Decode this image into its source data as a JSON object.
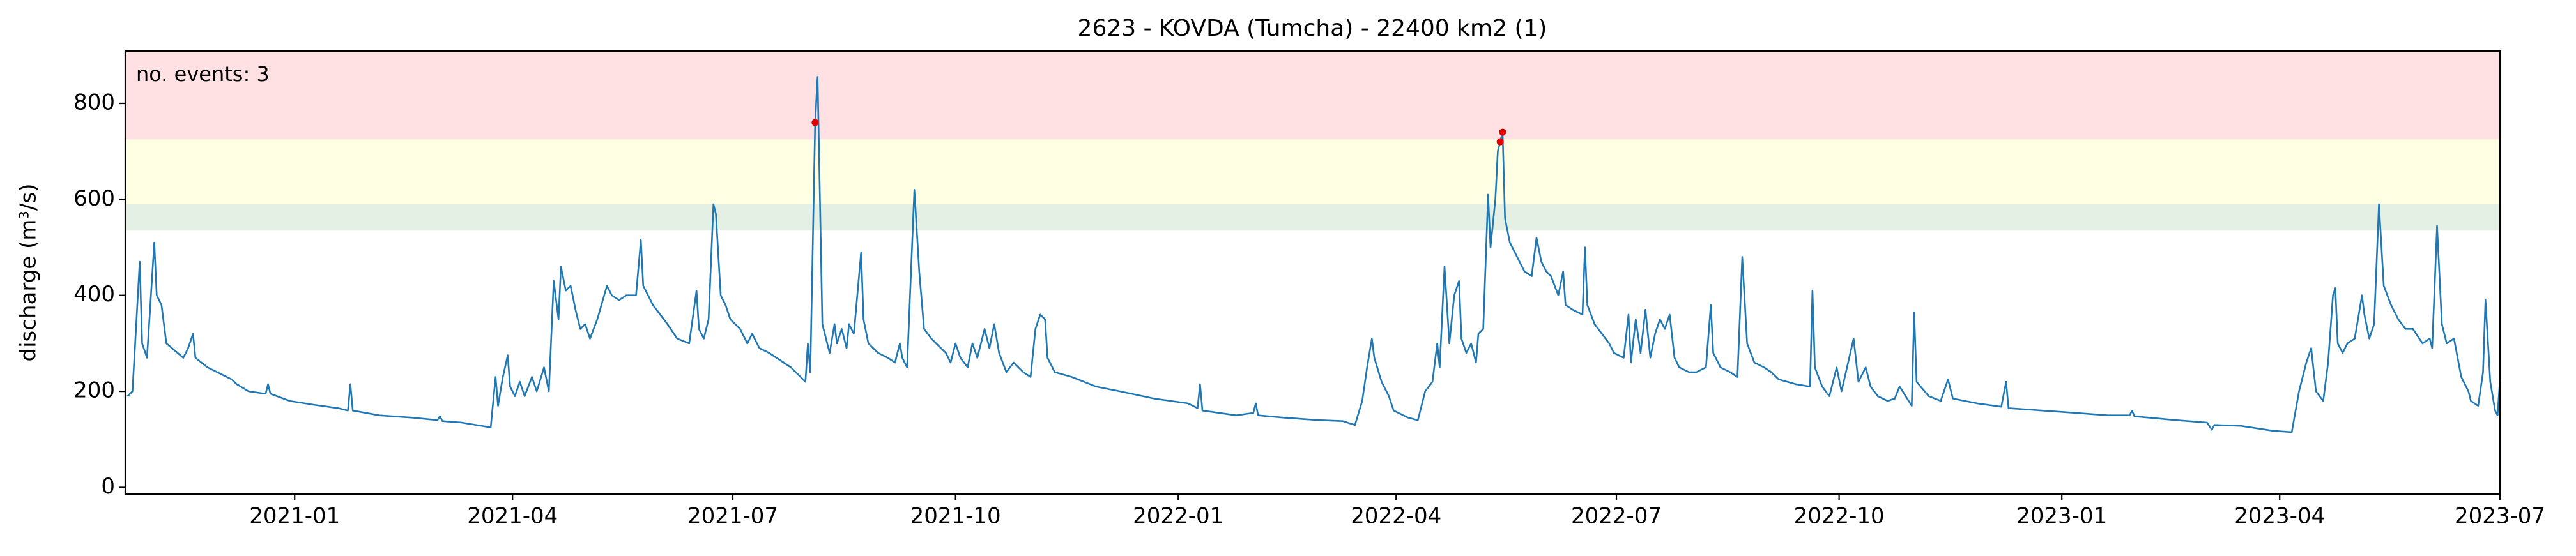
{
  "chart_data": {
    "type": "line",
    "title": "2623 - KOVDA (Tumcha) - 22400 km2 (1)",
    "y_label": "discharge (m³/s)",
    "annotation": "no. events: 3",
    "annotation_color": "#e00000",
    "color": "#1f77b4",
    "xlim": [
      "2020-10-23",
      "2023-07-01"
    ],
    "ylim": [
      -14,
      909
    ],
    "xticks": [
      "2021-01",
      "2021-04",
      "2021-07",
      "2021-10",
      "2022-01",
      "2022-04",
      "2022-07",
      "2022-10",
      "2023-01",
      "2023-04",
      "2023-07"
    ],
    "yticks": [
      0,
      200,
      400,
      600,
      800
    ],
    "bands": [
      {
        "lower": 535,
        "color": "#e3f0e3"
      },
      {
        "lower": 590,
        "color": "#ffffe3"
      },
      {
        "lower": 725,
        "color": "#ffe0e3"
      }
    ],
    "x": [
      "2020-10-24",
      "2020-10-26",
      "2020-10-29",
      "2020-10-30",
      "2020-11-01",
      "2020-11-04",
      "2020-11-05",
      "2020-11-07",
      "2020-11-09",
      "2020-11-16",
      "2020-11-18",
      "2020-11-20",
      "2020-11-21",
      "2020-11-26",
      "2020-12-06",
      "2020-12-08",
      "2020-12-13",
      "2020-12-20",
      "2020-12-21",
      "2020-12-22",
      "2020-12-30",
      "2021-01-09",
      "2021-01-19",
      "2021-01-23",
      "2021-01-24",
      "2021-01-25",
      "2021-02-05",
      "2021-02-19",
      "2021-03-01",
      "2021-03-02",
      "2021-03-03",
      "2021-03-11",
      "2021-03-23",
      "2021-03-25",
      "2021-03-26",
      "2021-03-28",
      "2021-03-30",
      "2021-03-31",
      "2021-04-02",
      "2021-04-04",
      "2021-04-06",
      "2021-04-09",
      "2021-04-11",
      "2021-04-14",
      "2021-04-16",
      "2021-04-18",
      "2021-04-20",
      "2021-04-21",
      "2021-04-23",
      "2021-04-25",
      "2021-04-27",
      "2021-04-29",
      "2021-05-01",
      "2021-05-03",
      "2021-05-06",
      "2021-05-10",
      "2021-05-12",
      "2021-05-15",
      "2021-05-18",
      "2021-05-22",
      "2021-05-24",
      "2021-05-25",
      "2021-05-29",
      "2021-06-01",
      "2021-06-04",
      "2021-06-08",
      "2021-06-13",
      "2021-06-16",
      "2021-06-17",
      "2021-06-19",
      "2021-06-21",
      "2021-06-23",
      "2021-06-24",
      "2021-06-26",
      "2021-06-28",
      "2021-06-30",
      "2021-07-04",
      "2021-07-07",
      "2021-07-09",
      "2021-07-12",
      "2021-07-16",
      "2021-07-19",
      "2021-07-22",
      "2021-07-25",
      "2021-07-29",
      "2021-07-31",
      "2021-08-01",
      "2021-08-02",
      "2021-08-04",
      "2021-08-05",
      "2021-08-06",
      "2021-08-07",
      "2021-08-08",
      "2021-08-10",
      "2021-08-12",
      "2021-08-13",
      "2021-08-15",
      "2021-08-17",
      "2021-08-18",
      "2021-08-20",
      "2021-08-23",
      "2021-08-24",
      "2021-08-26",
      "2021-08-30",
      "2021-09-03",
      "2021-09-06",
      "2021-09-08",
      "2021-09-09",
      "2021-09-11",
      "2021-09-14",
      "2021-09-16",
      "2021-09-18",
      "2021-09-21",
      "2021-09-25",
      "2021-09-27",
      "2021-09-29",
      "2021-10-01",
      "2021-10-03",
      "2021-10-06",
      "2021-10-08",
      "2021-10-10",
      "2021-10-13",
      "2021-10-15",
      "2021-10-17",
      "2021-10-19",
      "2021-10-22",
      "2021-10-25",
      "2021-10-29",
      "2021-11-01",
      "2021-11-03",
      "2021-11-05",
      "2021-11-07",
      "2021-11-08",
      "2021-11-11",
      "2021-11-18",
      "2021-11-28",
      "2021-12-08",
      "2021-12-22",
      "2022-01-05",
      "2022-01-09",
      "2022-01-10",
      "2022-01-11",
      "2022-01-18",
      "2022-01-25",
      "2022-02-01",
      "2022-02-02",
      "2022-02-03",
      "2022-02-14",
      "2022-02-28",
      "2022-03-10",
      "2022-03-15",
      "2022-03-18",
      "2022-03-20",
      "2022-03-22",
      "2022-03-23",
      "2022-03-26",
      "2022-03-29",
      "2022-03-31",
      "2022-04-06",
      "2022-04-10",
      "2022-04-13",
      "2022-04-16",
      "2022-04-18",
      "2022-04-19",
      "2022-04-21",
      "2022-04-22",
      "2022-04-23",
      "2022-04-25",
      "2022-04-27",
      "2022-04-28",
      "2022-04-30",
      "2022-05-02",
      "2022-05-04",
      "2022-05-05",
      "2022-05-07",
      "2022-05-09",
      "2022-05-10",
      "2022-05-12",
      "2022-05-13",
      "2022-05-14",
      "2022-05-15",
      "2022-05-16",
      "2022-05-18",
      "2022-05-21",
      "2022-05-24",
      "2022-05-27",
      "2022-05-29",
      "2022-05-31",
      "2022-06-02",
      "2022-06-04",
      "2022-06-07",
      "2022-06-09",
      "2022-06-10",
      "2022-06-13",
      "2022-06-17",
      "2022-06-18",
      "2022-06-19",
      "2022-06-22",
      "2022-06-25",
      "2022-06-28",
      "2022-06-30",
      "2022-07-04",
      "2022-07-06",
      "2022-07-07",
      "2022-07-09",
      "2022-07-11",
      "2022-07-13",
      "2022-07-15",
      "2022-07-17",
      "2022-07-19",
      "2022-07-21",
      "2022-07-23",
      "2022-07-25",
      "2022-07-27",
      "2022-07-31",
      "2022-08-03",
      "2022-08-07",
      "2022-08-09",
      "2022-08-10",
      "2022-08-13",
      "2022-08-17",
      "2022-08-20",
      "2022-08-22",
      "2022-08-24",
      "2022-08-27",
      "2022-08-31",
      "2022-09-03",
      "2022-09-06",
      "2022-09-13",
      "2022-09-19",
      "2022-09-20",
      "2022-09-21",
      "2022-09-24",
      "2022-09-27",
      "2022-09-30",
      "2022-10-02",
      "2022-10-07",
      "2022-10-09",
      "2022-10-12",
      "2022-10-14",
      "2022-10-17",
      "2022-10-21",
      "2022-10-24",
      "2022-10-26",
      "2022-10-31",
      "2022-11-01",
      "2022-11-02",
      "2022-11-07",
      "2022-11-12",
      "2022-11-15",
      "2022-11-17",
      "2022-11-27",
      "2022-12-07",
      "2022-12-09",
      "2022-12-10",
      "2022-12-24",
      "2023-01-07",
      "2023-01-20",
      "2023-01-29",
      "2023-01-30",
      "2023-01-31",
      "2023-02-17",
      "2023-03-02",
      "2023-03-04",
      "2023-03-05",
      "2023-03-16",
      "2023-03-29",
      "2023-04-06",
      "2023-04-09",
      "2023-04-12",
      "2023-04-14",
      "2023-04-16",
      "2023-04-19",
      "2023-04-21",
      "2023-04-23",
      "2023-04-24",
      "2023-04-25",
      "2023-04-27",
      "2023-04-29",
      "2023-05-02",
      "2023-05-05",
      "2023-05-06",
      "2023-05-08",
      "2023-05-10",
      "2023-05-12",
      "2023-05-14",
      "2023-05-17",
      "2023-05-20",
      "2023-05-23",
      "2023-05-26",
      "2023-05-30",
      "2023-06-02",
      "2023-06-03",
      "2023-06-05",
      "2023-06-07",
      "2023-06-09",
      "2023-06-12",
      "2023-06-15",
      "2023-06-18",
      "2023-06-19",
      "2023-06-22",
      "2023-06-24",
      "2023-06-25",
      "2023-06-27",
      "2023-06-29",
      "2023-06-30",
      "2023-07-01"
    ],
    "values": [
      190,
      200,
      470,
      300,
      270,
      510,
      400,
      380,
      300,
      270,
      290,
      320,
      270,
      250,
      225,
      215,
      200,
      195,
      215,
      195,
      180,
      172,
      165,
      160,
      215,
      160,
      150,
      145,
      140,
      148,
      138,
      135,
      125,
      230,
      170,
      230,
      275,
      210,
      190,
      220,
      190,
      230,
      200,
      250,
      200,
      430,
      350,
      460,
      410,
      420,
      370,
      330,
      340,
      310,
      350,
      420,
      400,
      390,
      400,
      400,
      515,
      420,
      380,
      360,
      340,
      310,
      300,
      410,
      330,
      310,
      350,
      590,
      570,
      400,
      380,
      350,
      330,
      300,
      320,
      290,
      280,
      270,
      260,
      250,
      230,
      220,
      300,
      240,
      760,
      855,
      600,
      340,
      320,
      280,
      340,
      300,
      330,
      290,
      340,
      320,
      490,
      350,
      300,
      280,
      270,
      260,
      300,
      270,
      250,
      620,
      450,
      330,
      310,
      290,
      280,
      260,
      300,
      270,
      250,
      300,
      270,
      330,
      290,
      340,
      280,
      240,
      260,
      240,
      230,
      330,
      360,
      350,
      270,
      240,
      230,
      210,
      200,
      185,
      175,
      165,
      215,
      160,
      155,
      150,
      155,
      175,
      150,
      145,
      140,
      138,
      130,
      180,
      250,
      310,
      270,
      220,
      190,
      160,
      145,
      140,
      200,
      220,
      300,
      250,
      460,
      380,
      300,
      400,
      430,
      310,
      280,
      300,
      260,
      320,
      330,
      610,
      500,
      600,
      700,
      720,
      740,
      560,
      510,
      480,
      450,
      440,
      520,
      470,
      450,
      440,
      400,
      450,
      380,
      370,
      360,
      500,
      380,
      340,
      320,
      300,
      280,
      270,
      360,
      260,
      350,
      280,
      370,
      270,
      320,
      350,
      330,
      360,
      270,
      250,
      240,
      240,
      250,
      380,
      280,
      250,
      240,
      230,
      480,
      300,
      260,
      250,
      240,
      225,
      215,
      210,
      410,
      250,
      210,
      190,
      250,
      200,
      310,
      220,
      250,
      210,
      190,
      180,
      185,
      210,
      170,
      365,
      220,
      190,
      180,
      225,
      185,
      175,
      168,
      220,
      165,
      160,
      155,
      150,
      150,
      160,
      148,
      140,
      135,
      120,
      130,
      128,
      118,
      115,
      200,
      260,
      290,
      200,
      180,
      260,
      400,
      415,
      300,
      280,
      300,
      310,
      400,
      360,
      310,
      340,
      590,
      420,
      380,
      350,
      330,
      330,
      300,
      310,
      290,
      545,
      340,
      300,
      310,
      230,
      200,
      180,
      170,
      240,
      390,
      220,
      160,
      150,
      225
    ],
    "events": {
      "color": "#e00000",
      "x": [
        "2021-08-04",
        "2022-05-14",
        "2022-05-15"
      ],
      "values": [
        760,
        720,
        740
      ]
    }
  }
}
